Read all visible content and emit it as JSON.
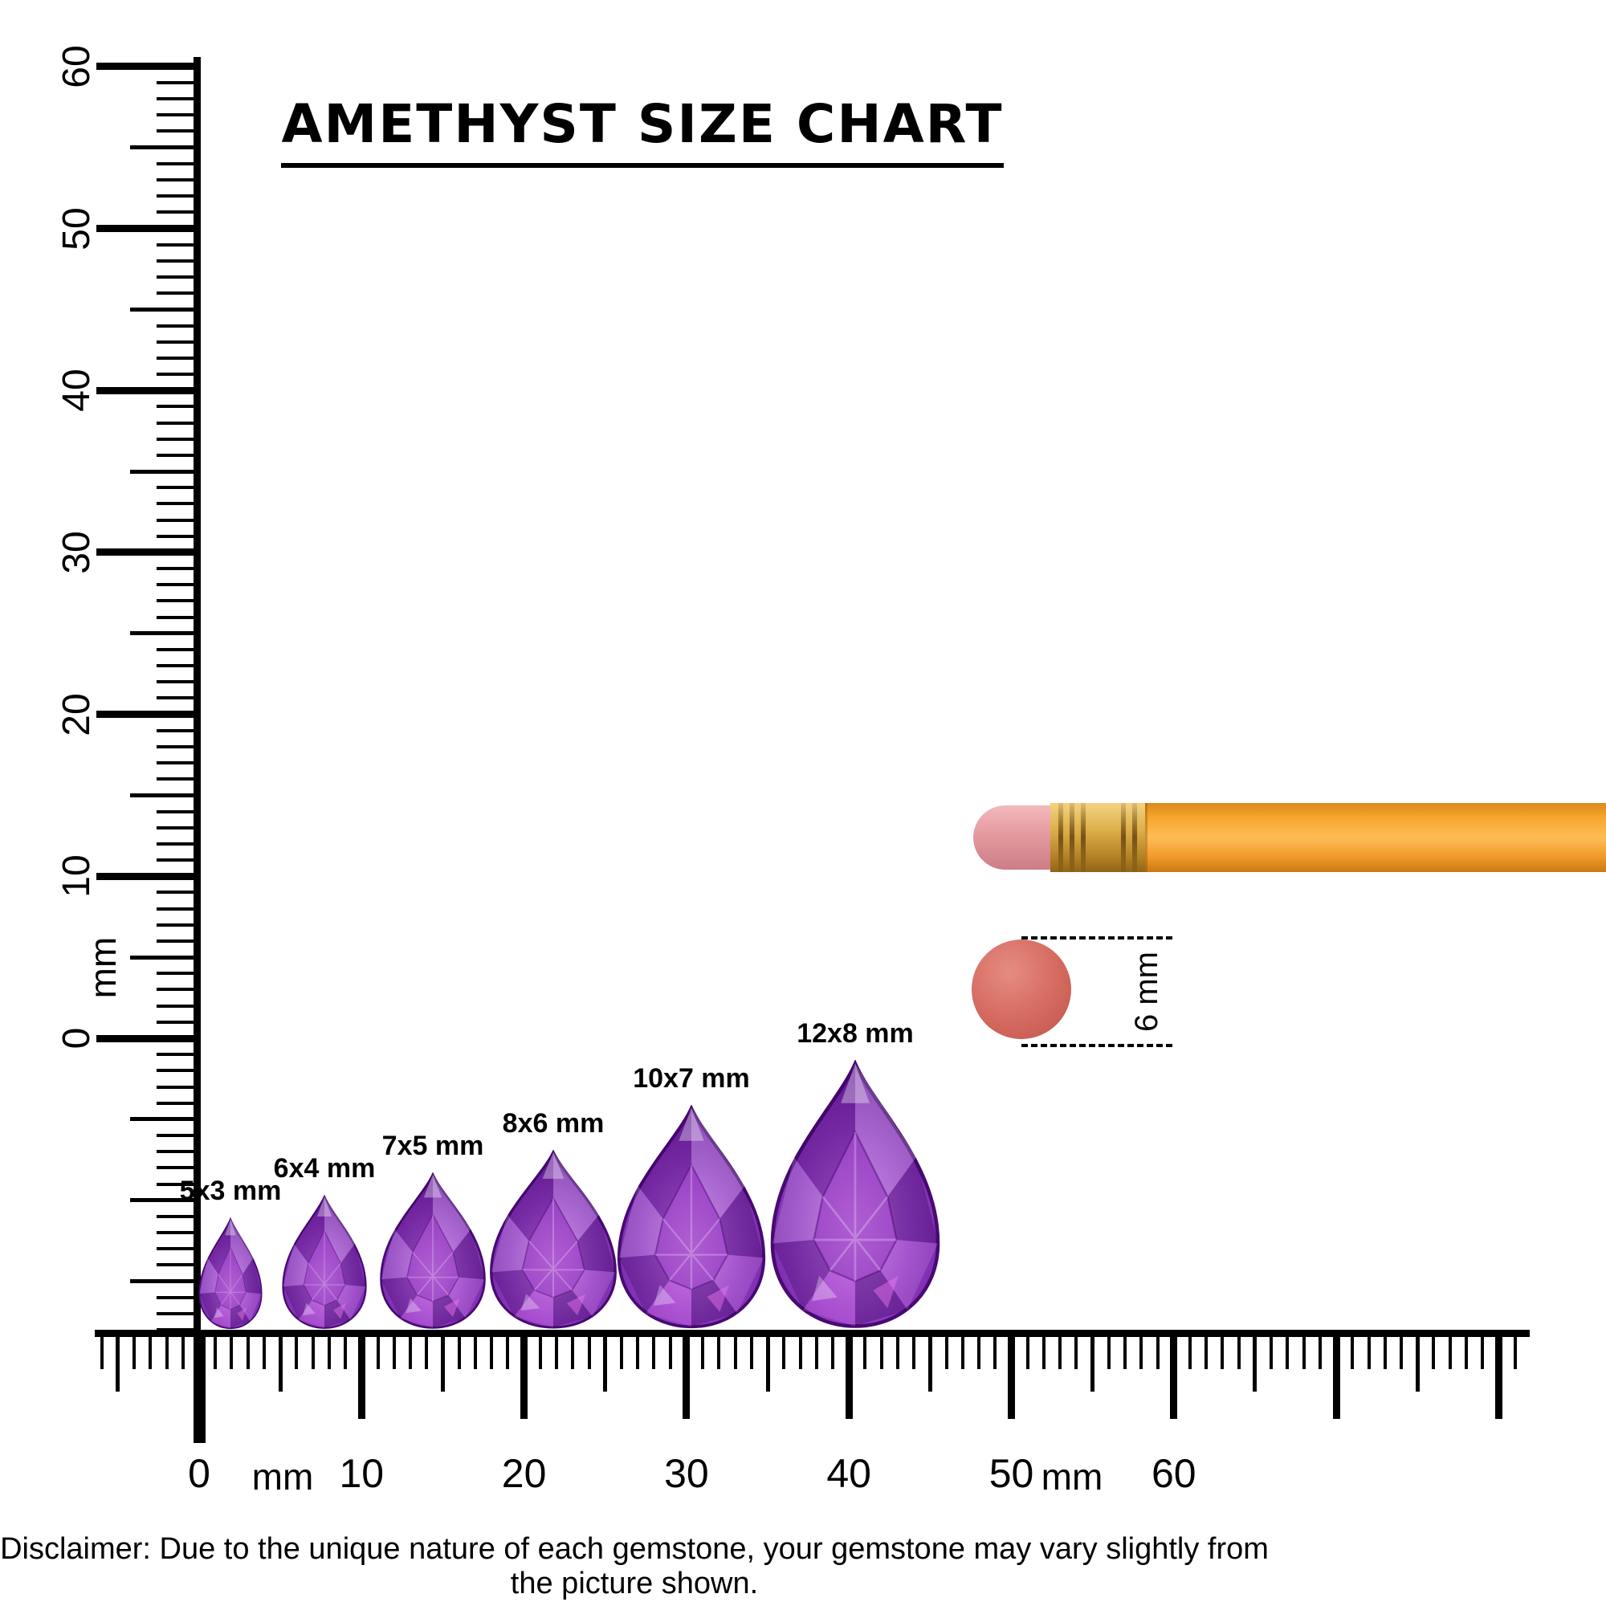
{
  "title": "AMETHYST SIZE CHART",
  "disclaimer": "Disclaimer: Due to the unique nature of each gemstone, your gemstone may vary slightly from the picture shown.",
  "vertical_ruler": {
    "unit": "mm",
    "tick_labels": [
      60,
      50,
      40,
      30,
      20,
      10,
      0
    ],
    "range_mm": [
      0,
      60
    ]
  },
  "horizontal_ruler": {
    "unit_left": "mm",
    "unit_right": "mm",
    "tick_labels": [
      0,
      10,
      20,
      30,
      40,
      50,
      60
    ],
    "range_mm": [
      0,
      60
    ]
  },
  "gems": [
    {
      "label": "5x3 mm",
      "length_mm": 5,
      "width_mm": 3,
      "shape": "pear"
    },
    {
      "label": "6x4 mm",
      "length_mm": 6,
      "width_mm": 4,
      "shape": "pear"
    },
    {
      "label": "7x5 mm",
      "length_mm": 7,
      "width_mm": 5,
      "shape": "pear"
    },
    {
      "label": "8x6 mm",
      "length_mm": 8,
      "width_mm": 6,
      "shape": "pear"
    },
    {
      "label": "10x7 mm",
      "length_mm": 10,
      "width_mm": 7,
      "shape": "pear"
    },
    {
      "label": "12x8 mm",
      "length_mm": 12,
      "width_mm": 8,
      "shape": "pear"
    }
  ],
  "reference": {
    "eraser_label": "6 mm",
    "eraser_diameter_mm": 6
  },
  "colors": {
    "gem_purple": "#8a2fb8",
    "gem_dark": "#5d1191",
    "gem_light": "#c077de",
    "pencil_body": "#f7a62e",
    "pencil_ferrule": "#dcae48",
    "pencil_eraser": "#e59aa0",
    "eraser_circle": "#d4695f",
    "ink": "#000000"
  }
}
